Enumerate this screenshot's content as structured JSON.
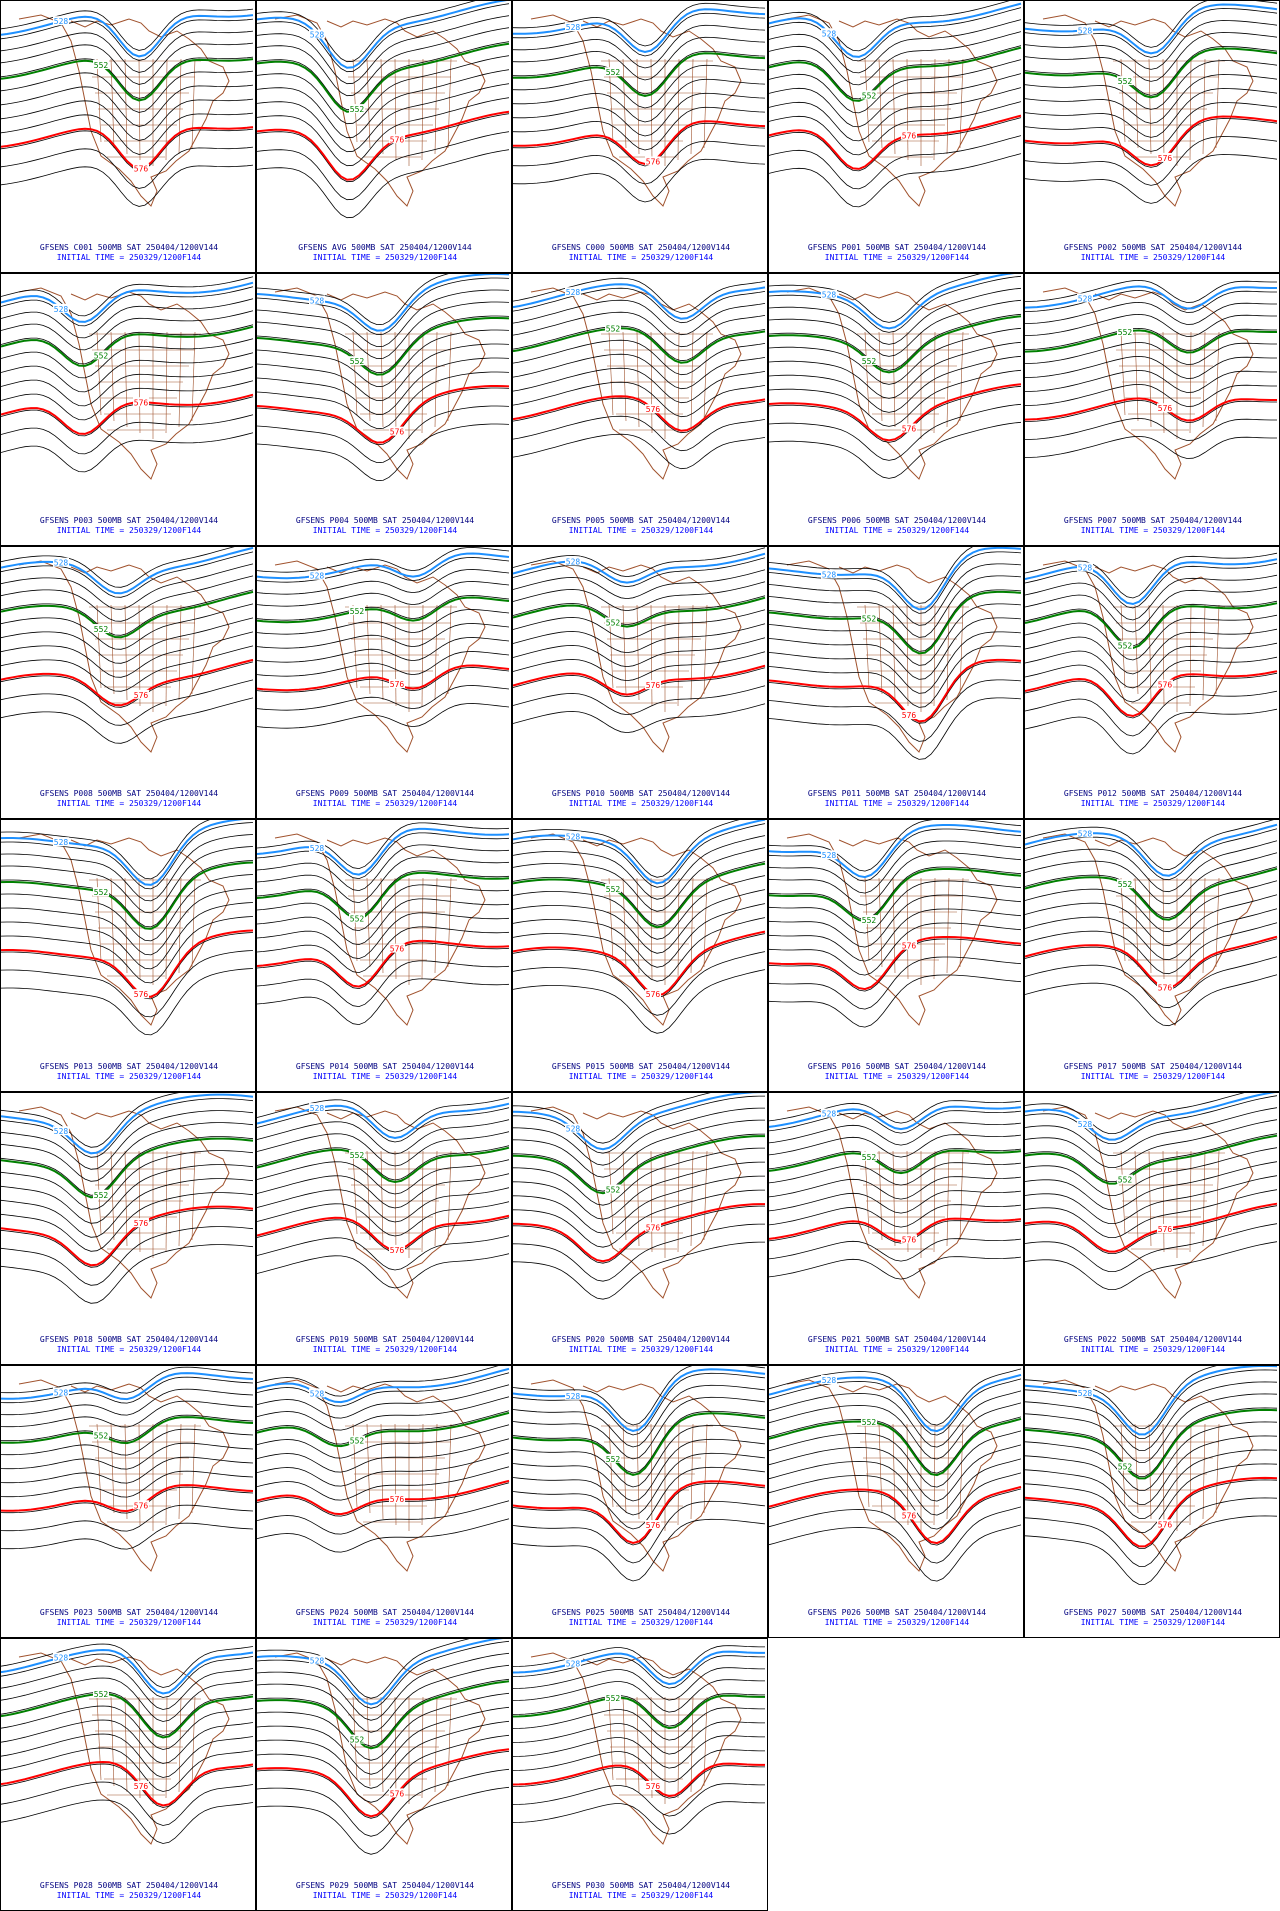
{
  "panels": [
    {
      "title": "GFSENS C001 500MB SAT 250404/1200V144",
      "initial": "INITIAL TIME = 250329/1200F144",
      "contours": [
        "528",
        "552",
        "576"
      ]
    },
    {
      "title": "GFSENS AVG 500MB SAT 250404/1200V144",
      "initial": "INITIAL TIME = 250329/1200F144",
      "contours": [
        "528",
        "552",
        "576"
      ]
    },
    {
      "title": "GFSENS C000 500MB SAT 250404/1200V144",
      "initial": "INITIAL TIME = 250329/1200F144",
      "contours": [
        "528",
        "552",
        "576"
      ]
    },
    {
      "title": "GFSENS P001 500MB SAT 250404/1200V144",
      "initial": "INITIAL TIME = 250329/1200F144",
      "contours": [
        "528",
        "552",
        "576"
      ]
    },
    {
      "title": "GFSENS P002 500MB SAT 250404/1200V144",
      "initial": "INITIAL TIME = 250329/1200F144",
      "contours": [
        "528",
        "552",
        "576"
      ]
    },
    {
      "title": "GFSENS P003 500MB SAT 250404/1200V144",
      "initial": "INITIAL TIME = 250329/1200F144",
      "contours": [
        "528",
        "552",
        "576"
      ]
    },
    {
      "title": "GFSENS P004 500MB SAT 250404/1200V144",
      "initial": "INITIAL TIME = 250329/1200F144",
      "contours": [
        "528",
        "552",
        "576"
      ]
    },
    {
      "title": "GFSENS P005 500MB SAT 250404/1200V144",
      "initial": "INITIAL TIME = 250329/1200F144",
      "contours": [
        "528",
        "552",
        "576"
      ]
    },
    {
      "title": "GFSENS P006 500MB SAT 250404/1200V144",
      "initial": "INITIAL TIME = 250329/1200F144",
      "contours": [
        "528",
        "552",
        "576"
      ]
    },
    {
      "title": "GFSENS P007 500MB SAT 250404/1200V144",
      "initial": "INITIAL TIME = 250329/1200F144",
      "contours": [
        "528",
        "552",
        "576"
      ]
    },
    {
      "title": "GFSENS P008 500MB SAT 250404/1200V144",
      "initial": "INITIAL TIME = 250329/1200F144",
      "contours": [
        "528",
        "552",
        "576"
      ]
    },
    {
      "title": "GFSENS P009 500MB SAT 250404/1200V144",
      "initial": "INITIAL TIME = 250329/1200F144",
      "contours": [
        "528",
        "552",
        "576"
      ]
    },
    {
      "title": "GFSENS P010 500MB SAT 250404/1200V144",
      "initial": "INITIAL TIME = 250329/1200F144",
      "contours": [
        "528",
        "552",
        "576"
      ]
    },
    {
      "title": "GFSENS P011 500MB SAT 250404/1200V144",
      "initial": "INITIAL TIME = 250329/1200F144",
      "contours": [
        "528",
        "552",
        "576"
      ]
    },
    {
      "title": "GFSENS P012 500MB SAT 250404/1200V144",
      "initial": "INITIAL TIME = 250329/1200F144",
      "contours": [
        "528",
        "552",
        "576"
      ]
    },
    {
      "title": "GFSENS P013 500MB SAT 250404/1200V144",
      "initial": "INITIAL TIME = 250329/1200F144",
      "contours": [
        "528",
        "552",
        "576"
      ]
    },
    {
      "title": "GFSENS P014 500MB SAT 250404/1200V144",
      "initial": "INITIAL TIME = 250329/1200F144",
      "contours": [
        "528",
        "552",
        "576"
      ]
    },
    {
      "title": "GFSENS P015 500MB SAT 250404/1200V144",
      "initial": "INITIAL TIME = 250329/1200F144",
      "contours": [
        "528",
        "552",
        "576"
      ]
    },
    {
      "title": "GFSENS P016 500MB SAT 250404/1200V144",
      "initial": "INITIAL TIME = 250329/1200F144",
      "contours": [
        "528",
        "552",
        "576"
      ]
    },
    {
      "title": "GFSENS P017 500MB SAT 250404/1200V144",
      "initial": "INITIAL TIME = 250329/1200F144",
      "contours": [
        "528",
        "552",
        "576"
      ]
    },
    {
      "title": "GFSENS P018 500MB SAT 250404/1200V144",
      "initial": "INITIAL TIME = 250329/1200F144",
      "contours": [
        "528",
        "552",
        "576"
      ]
    },
    {
      "title": "GFSENS P019 500MB SAT 250404/1200V144",
      "initial": "INITIAL TIME = 250329/1200F144",
      "contours": [
        "528",
        "552",
        "576"
      ]
    },
    {
      "title": "GFSENS P020 500MB SAT 250404/1200V144",
      "initial": "INITIAL TIME = 250329/1200F144",
      "contours": [
        "528",
        "552",
        "576"
      ]
    },
    {
      "title": "GFSENS P021 500MB SAT 250404/1200V144",
      "initial": "INITIAL TIME = 250329/1200F144",
      "contours": [
        "528",
        "552",
        "576"
      ]
    },
    {
      "title": "GFSENS P022 500MB SAT 250404/1200V144",
      "initial": "INITIAL TIME = 250329/1200F144",
      "contours": [
        "528",
        "552",
        "576"
      ]
    },
    {
      "title": "GFSENS P023 500MB SAT 250404/1200V144",
      "initial": "INITIAL TIME = 250329/1200F144",
      "contours": [
        "528",
        "552",
        "576"
      ]
    },
    {
      "title": "GFSENS P024 500MB SAT 250404/1200V144",
      "initial": "INITIAL TIME = 250329/1200F144",
      "contours": [
        "528",
        "552",
        "576"
      ]
    },
    {
      "title": "GFSENS P025 500MB SAT 250404/1200V144",
      "initial": "INITIAL TIME = 250329/1200F144",
      "contours": [
        "528",
        "552",
        "576"
      ]
    },
    {
      "title": "GFSENS P026 500MB SAT 250404/1200V144",
      "initial": "INITIAL TIME = 250329/1200F144",
      "contours": [
        "528",
        "552",
        "576"
      ]
    },
    {
      "title": "GFSENS P027 500MB SAT 250404/1200V144",
      "initial": "INITIAL TIME = 250329/1200F144",
      "contours": [
        "528",
        "552",
        "576"
      ]
    },
    {
      "title": "GFSENS P028 500MB SAT 250404/1200V144",
      "initial": "INITIAL TIME = 250329/1200F144",
      "contours": [
        "528",
        "552",
        "576"
      ]
    },
    {
      "title": "GFSENS P029 500MB SAT 250404/1200V144",
      "initial": "INITIAL TIME = 250329/1200F144",
      "contours": [
        "528",
        "552",
        "576"
      ]
    },
    {
      "title": "GFSENS P030 500MB SAT 250404/1200V144",
      "initial": "INITIAL TIME = 250329/1200F144",
      "contours": [
        "528",
        "552",
        "576"
      ]
    }
  ]
}
